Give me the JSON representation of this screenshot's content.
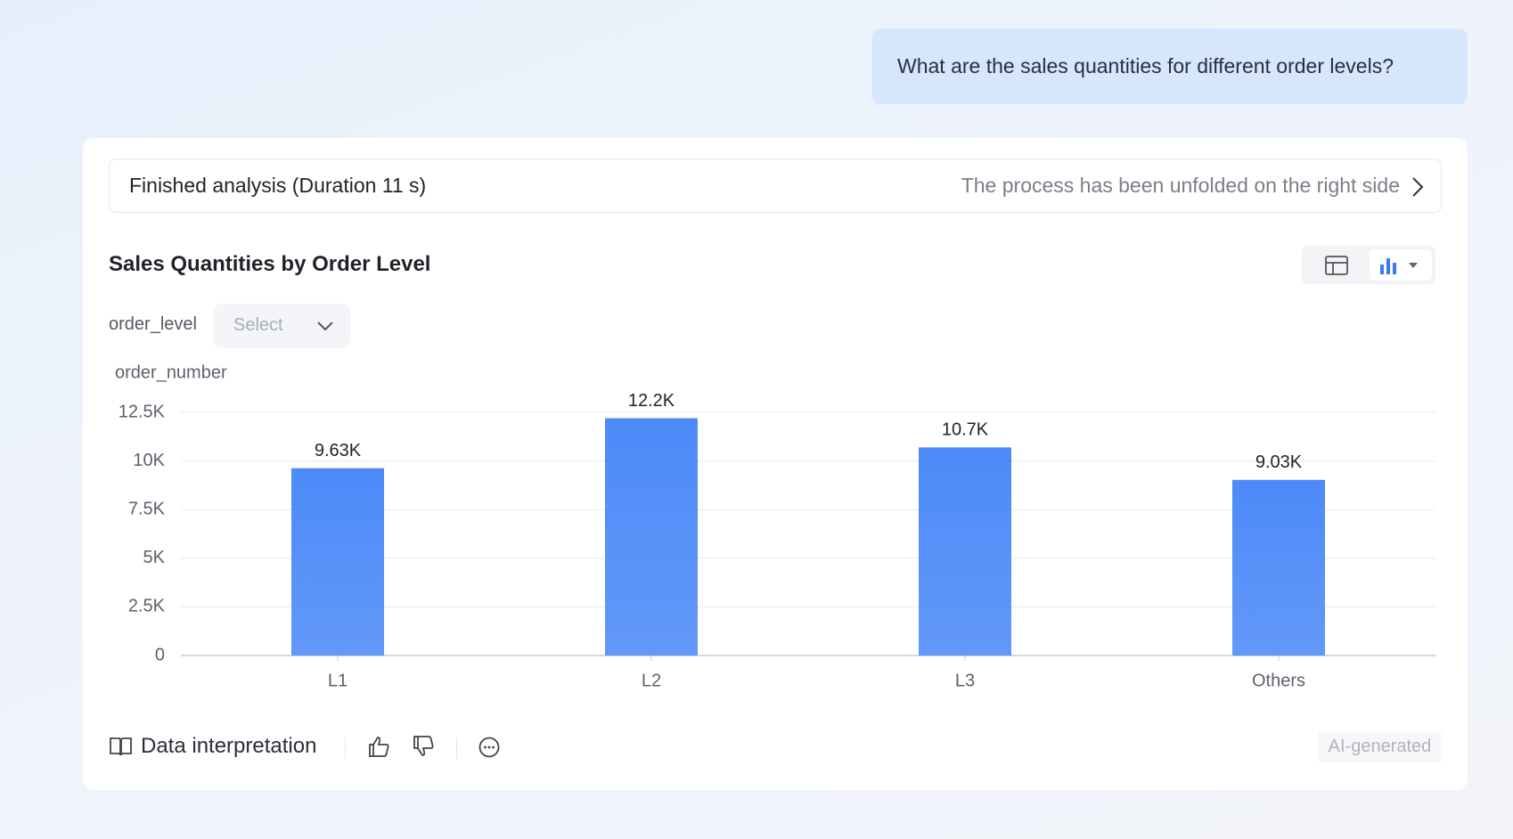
{
  "question": "What are the sales quantities for different order levels?",
  "analysis": {
    "status": "Finished analysis (Duration 11 s)",
    "hint": "The process has been unfolded on the right side"
  },
  "filter": {
    "label": "order_level",
    "placeholder": "Select"
  },
  "footer": {
    "interpretation": "Data interpretation",
    "badge": "AI-generated"
  },
  "chart_data": {
    "type": "bar",
    "title": "Sales Quantities by Order Level",
    "y_label": "order_number",
    "categories": [
      "L1",
      "L2",
      "L3",
      "Others"
    ],
    "values": [
      9630,
      12200,
      10700,
      9030
    ],
    "value_labels": [
      "9.63K",
      "12.2K",
      "10.7K",
      "9.03K"
    ],
    "color": "#4d8af8",
    "ylim": [
      0,
      12500
    ],
    "yticks": [
      0,
      {
        "value": 2500,
        "label": "2.5K"
      },
      {
        "value": 5000,
        "label": "5K"
      },
      {
        "value": 7500,
        "label": "7.5K"
      },
      {
        "value": 10000,
        "label": "10K"
      },
      {
        "value": 12500,
        "label": "12.5K"
      }
    ],
    "grid": true
  }
}
